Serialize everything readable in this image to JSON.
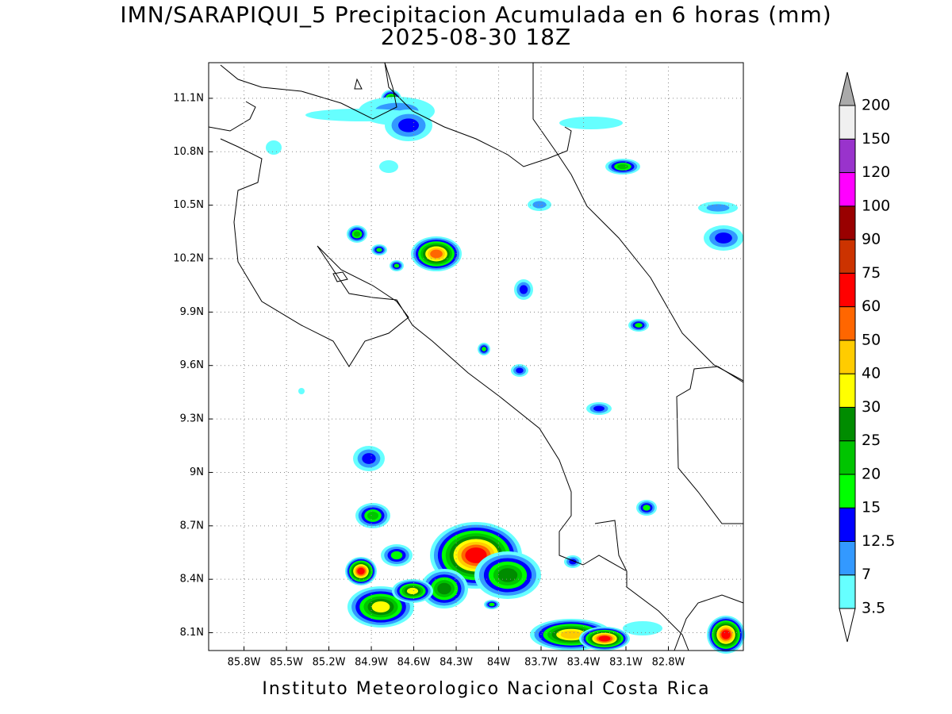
{
  "header": {
    "title": "IMN/SARAPIQUI_5 Precipitacion Acumulada en 6 horas (mm)",
    "subtitle": "2025-08-30 18Z"
  },
  "map": {
    "xlim": [
      -86.05,
      -82.27
    ],
    "ylim": [
      8.0,
      11.3
    ],
    "grid": true,
    "xticks": [
      {
        "value": -85.8,
        "label": "85.8W"
      },
      {
        "value": -85.5,
        "label": "85.5W"
      },
      {
        "value": -85.2,
        "label": "85.2W"
      },
      {
        "value": -84.9,
        "label": "84.9W"
      },
      {
        "value": -84.6,
        "label": "84.6W"
      },
      {
        "value": -84.3,
        "label": "84.3W"
      },
      {
        "value": -84.0,
        "label": "84W"
      },
      {
        "value": -83.7,
        "label": "83.7W"
      },
      {
        "value": -83.4,
        "label": "83.4W"
      },
      {
        "value": -83.1,
        "label": "83.1W"
      },
      {
        "value": -82.8,
        "label": "82.8W"
      }
    ],
    "yticks": [
      {
        "value": 11.1,
        "label": "11.1N"
      },
      {
        "value": 10.8,
        "label": "10.8N"
      },
      {
        "value": 10.5,
        "label": "10.5N"
      },
      {
        "value": 10.2,
        "label": "10.2N"
      },
      {
        "value": 9.9,
        "label": "9.9N"
      },
      {
        "value": 9.6,
        "label": "9.6N"
      },
      {
        "value": 9.3,
        "label": "9.3N"
      },
      {
        "value": 9.0,
        "label": "9N"
      },
      {
        "value": 8.7,
        "label": "8.7N"
      },
      {
        "value": 8.4,
        "label": "8.4N"
      },
      {
        "value": 8.1,
        "label": "8.1N"
      }
    ]
  },
  "colorbar": {
    "levels": [
      3.5,
      7,
      12.5,
      15,
      20,
      25,
      30,
      40,
      50,
      60,
      75,
      90,
      100,
      120,
      150,
      200
    ],
    "colors": [
      "#66ffff",
      "#3399ff",
      "#0000ff",
      "#00ff00",
      "#00c400",
      "#008c00",
      "#ffff00",
      "#ffcc00",
      "#ff6600",
      "#ff0000",
      "#cc3300",
      "#990000",
      "#ff00ff",
      "#9933cc",
      "#f0f0f0"
    ],
    "under_color": "#ffffff",
    "over_color": "#aaaaaa"
  },
  "footer": "Instituto Meteorologico Nacional Costa Rica"
}
